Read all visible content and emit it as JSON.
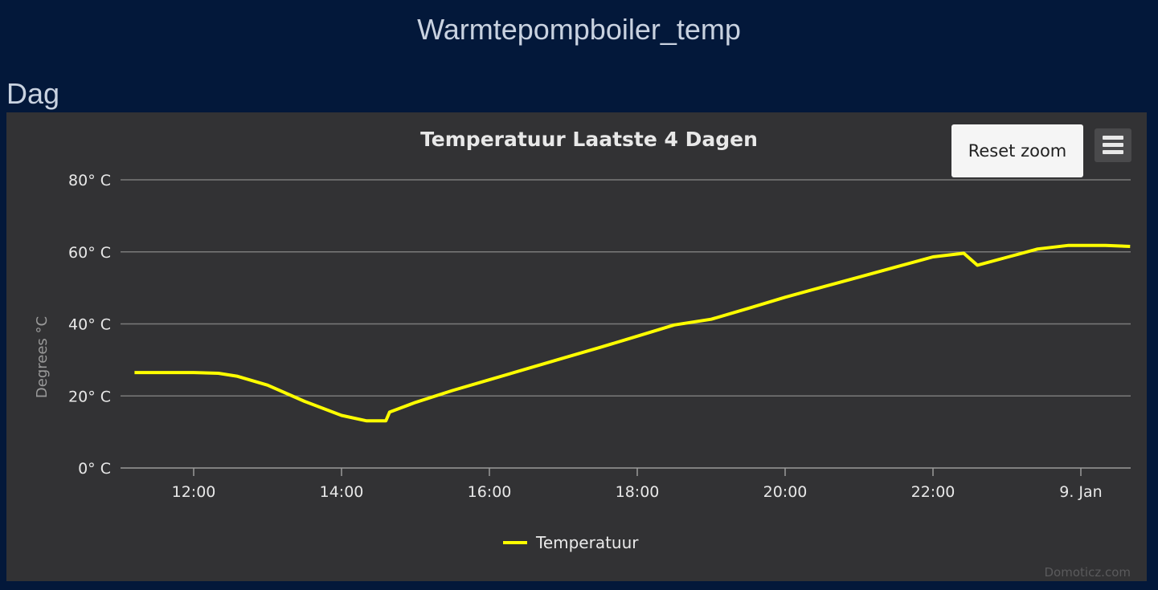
{
  "page": {
    "title": "Warmtepompboiler_temp",
    "section": "Dag"
  },
  "toolbar": {
    "reset_zoom_label": "Reset zoom",
    "menu_icon": "hamburger-menu-icon"
  },
  "colors": {
    "background": "#03183a",
    "panel": "#323234",
    "series": "#ffff00",
    "grid": "#8a8a8a"
  },
  "chart_data": {
    "type": "line",
    "title": "Temperatuur Laatste 4 Dagen",
    "ylabel": "Degrees °C",
    "xlabel": "",
    "ylim": [
      0,
      80
    ],
    "yticks": [
      0,
      20,
      40,
      60,
      80
    ],
    "ytick_labels": [
      "0° C",
      "20° C",
      "40° C",
      "60° C",
      "80° C"
    ],
    "xticks": [
      "12:00",
      "14:00",
      "16:00",
      "18:00",
      "20:00",
      "22:00",
      "00:00"
    ],
    "xtick_labels": [
      "12:00",
      "14:00",
      "16:00",
      "18:00",
      "20:00",
      "22:00",
      "9. Jan"
    ],
    "xlim": [
      "11:00",
      "00:40"
    ],
    "grid": true,
    "legend": "bottom-center",
    "credits": "Domoticz.com",
    "series": [
      {
        "name": "Temperatuur",
        "x": [
          "11:12",
          "12:00",
          "12:20",
          "12:35",
          "13:00",
          "13:30",
          "14:00",
          "14:20",
          "14:36",
          "14:39",
          "15:00",
          "15:30",
          "16:00",
          "16:30",
          "17:00",
          "17:30",
          "18:00",
          "18:30",
          "19:00",
          "19:30",
          "20:00",
          "20:30",
          "21:00",
          "21:30",
          "22:00",
          "22:25",
          "22:36",
          "23:00",
          "23:25",
          "23:50",
          "00:20",
          "00:40"
        ],
        "y": [
          26.5,
          26.5,
          26.3,
          25.5,
          23,
          18.5,
          14.6,
          13.1,
          13.1,
          15.5,
          18.2,
          21.5,
          24.5,
          27.5,
          30.5,
          33.5,
          36.6,
          39.7,
          41.3,
          44.3,
          47.4,
          50.2,
          53,
          55.8,
          58.6,
          59.6,
          56.3,
          58.5,
          60.8,
          61.8,
          61.8,
          61.5
        ]
      }
    ]
  }
}
